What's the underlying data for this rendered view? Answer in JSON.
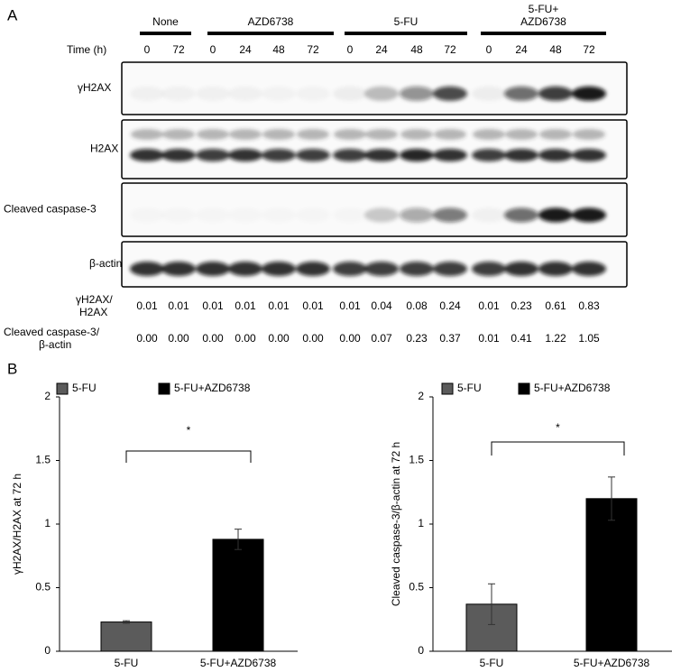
{
  "panel_a": {
    "label": "A",
    "groups": [
      [
        "None"
      ],
      [
        "AZD6738"
      ],
      [
        "5-FU"
      ],
      [
        "5-FU+",
        "AZD6738"
      ]
    ],
    "time_label": "Time (h)",
    "times": [
      "0",
      "72",
      "0",
      "24",
      "48",
      "72",
      "0",
      "24",
      "48",
      "72",
      "0",
      "24",
      "48",
      "72"
    ],
    "blots": [
      "γH2AX",
      "H2AX",
      "Cleaved caspase-3",
      "β-actin"
    ],
    "quant": [
      {
        "label": [
          "γH2AX/",
          "H2AX"
        ],
        "values": [
          "0.01",
          "0.01",
          "0.01",
          "0.01",
          "0.01",
          "0.01",
          "0.01",
          "0.04",
          "0.08",
          "0.24",
          "0.01",
          "0.23",
          "0.61",
          "0.83"
        ]
      },
      {
        "label": [
          "Cleaved caspase-3/",
          "β-actin"
        ],
        "values": [
          "0.00",
          "0.00",
          "0.00",
          "0.00",
          "0.00",
          "0.00",
          "0.00",
          "0.07",
          "0.23",
          "0.37",
          "0.01",
          "0.41",
          "1.22",
          "1.05"
        ]
      }
    ]
  },
  "panel_b_label": "B",
  "chart_data": [
    {
      "type": "bar",
      "y_label": "γH2AX/H2AX at 72 h",
      "categories": [
        "5-FU",
        "5-FU+AZD6738"
      ],
      "values": [
        0.23,
        0.88
      ],
      "errors": [
        0.01,
        0.08
      ],
      "colors": [
        "#5b5b5b",
        "#000000"
      ],
      "ylim": [
        0,
        2
      ],
      "yticks": [
        0,
        0.5,
        1,
        1.5,
        2
      ],
      "annotation": "*"
    },
    {
      "type": "bar",
      "y_label": "Cleaved caspase-3/β-actin at 72 h",
      "categories": [
        "5-FU",
        "5-FU+AZD6738"
      ],
      "values": [
        0.37,
        1.2
      ],
      "errors": [
        0.16,
        0.17
      ],
      "colors": [
        "#5b5b5b",
        "#000000"
      ],
      "ylim": [
        0,
        2
      ],
      "yticks": [
        0,
        0.5,
        1,
        1.5,
        2
      ],
      "annotation": "*"
    }
  ]
}
